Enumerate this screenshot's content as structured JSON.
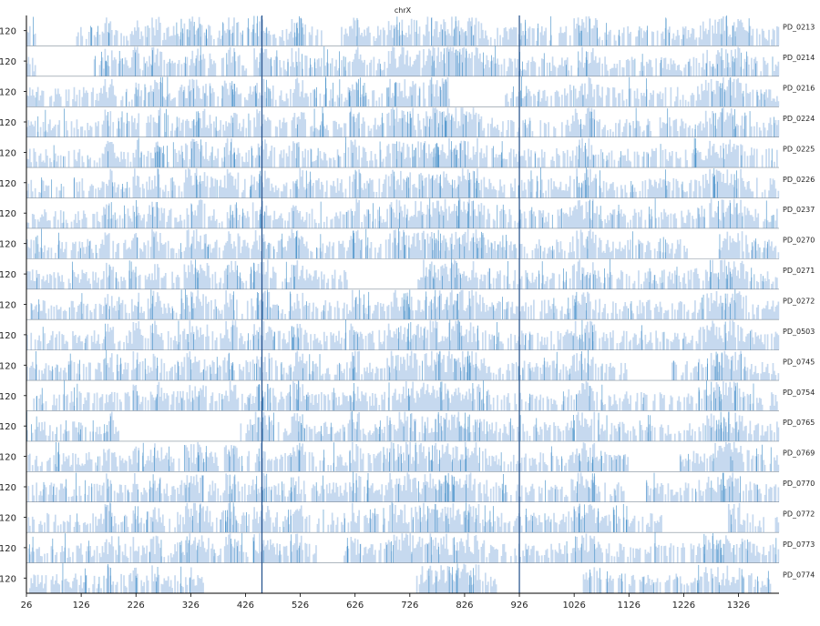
{
  "chart_data": {
    "type": "area",
    "title": "chrX",
    "x_ticks": [
      26,
      126,
      226,
      326,
      426,
      526,
      626,
      726,
      826,
      926,
      1026,
      1126,
      1226,
      1326
    ],
    "xlim": [
      26,
      1400
    ],
    "y_tick_label": "120",
    "samples": [
      {
        "name": "PD_0213",
        "gaps": [
          [
            43,
            116
          ],
          [
            565,
            601
          ]
        ]
      },
      {
        "name": "PD_0214",
        "gaps": [
          [
            43,
            136
          ]
        ]
      },
      {
        "name": "PD_0216",
        "gaps": [
          [
            800,
            900
          ]
        ]
      },
      {
        "name": "PD_0224",
        "gaps": []
      },
      {
        "name": "PD_0225",
        "gaps": []
      },
      {
        "name": "PD_0226",
        "gaps": [
          [
            97,
            112
          ]
        ]
      },
      {
        "name": "PD_0237",
        "gaps": []
      },
      {
        "name": "PD_0270",
        "gaps": [
          [
            1233,
            1289
          ]
        ]
      },
      {
        "name": "PD_0271",
        "gaps": [
          [
            613,
            736
          ]
        ]
      },
      {
        "name": "PD_0272",
        "gaps": [
          [
            26,
            34
          ]
        ]
      },
      {
        "name": "PD_0503",
        "gaps": []
      },
      {
        "name": "PD_0745",
        "gaps": [
          [
            1123,
            1204
          ]
        ]
      },
      {
        "name": "PD_0754",
        "gaps": [
          [
            26,
            38
          ]
        ]
      },
      {
        "name": "PD_0765",
        "gaps": [
          [
            195,
            416
          ]
        ]
      },
      {
        "name": "PD_0769",
        "gaps": [
          [
            1126,
            1218
          ]
        ]
      },
      {
        "name": "PD_0770",
        "gaps": [
          [
            1118,
            1152
          ]
        ]
      },
      {
        "name": "PD_0772",
        "gaps": [
          [
            1186,
            1306
          ]
        ]
      },
      {
        "name": "PD_0773",
        "gaps": [
          [
            556,
            606
          ]
        ]
      },
      {
        "name": "PD_0774",
        "gaps": [
          [
            356,
            736
          ],
          [
            889,
            1041
          ],
          [
            1386,
            1400
          ]
        ]
      }
    ],
    "vertical_lines": [
      456,
      926
    ],
    "colors": {
      "fill": "#c6d9ef",
      "dense": "#3a8ac6",
      "line": "#1f4e8a",
      "axis": "#000000",
      "separator": "#7f8c99"
    }
  }
}
